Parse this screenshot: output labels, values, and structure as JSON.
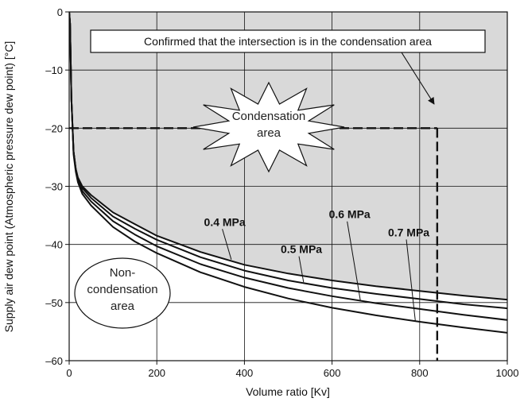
{
  "chart_data": {
    "type": "line",
    "xlabel": "Volume ratio [Kv]",
    "ylabel": "Supply air dew point (Atmospheric pressure dew point) [°C]",
    "xlim": [
      0,
      1000
    ],
    "ylim": [
      -60,
      0
    ],
    "x_ticks": [
      0,
      200,
      400,
      600,
      800,
      1000
    ],
    "y_ticks": [
      0,
      -10,
      -20,
      -30,
      -40,
      -50,
      -60
    ],
    "x_tick_labels": [
      "0",
      "200",
      "400",
      "600",
      "800",
      "1000"
    ],
    "y_tick_labels": [
      "0",
      "–10",
      "–20",
      "–30",
      "–40",
      "–50",
      "–60"
    ],
    "grid": true,
    "condensation_region_color": "#d9d9d9",
    "series": [
      {
        "name": "0.4 MPa",
        "x": [
          2,
          5,
          10,
          15,
          20,
          30,
          50,
          100,
          150,
          200,
          300,
          400,
          500,
          600,
          700,
          800,
          900,
          1000
        ],
        "y": [
          -2,
          -15,
          -24,
          -27,
          -28.5,
          -30,
          -31.5,
          -34.5,
          -36.5,
          -38.5,
          -41.3,
          -43.5,
          -45,
          -46.2,
          -47.2,
          -48,
          -48.8,
          -49.5
        ]
      },
      {
        "name": "0.5 MPa",
        "x": [
          2,
          5,
          10,
          15,
          20,
          30,
          50,
          100,
          150,
          200,
          300,
          400,
          500,
          600,
          700,
          800,
          900,
          1000
        ],
        "y": [
          -2,
          -15,
          -24,
          -27,
          -28.7,
          -30.3,
          -32,
          -35.2,
          -37.3,
          -39.2,
          -42.2,
          -44.5,
          -46.2,
          -47.5,
          -48.5,
          -49.4,
          -50.3,
          -51
        ]
      },
      {
        "name": "0.6 MPa",
        "x": [
          2,
          5,
          10,
          15,
          20,
          30,
          50,
          100,
          150,
          200,
          300,
          400,
          500,
          600,
          700,
          800,
          900,
          1000
        ],
        "y": [
          -2,
          -15,
          -24,
          -27.2,
          -29,
          -30.8,
          -32.6,
          -36,
          -38.3,
          -40.3,
          -43.4,
          -45.7,
          -47.5,
          -48.9,
          -50.1,
          -51.1,
          -52.1,
          -53
        ]
      },
      {
        "name": "0.7 MPa",
        "x": [
          2,
          5,
          10,
          15,
          20,
          30,
          50,
          100,
          150,
          200,
          300,
          400,
          500,
          600,
          700,
          800,
          900,
          1000
        ],
        "y": [
          -2,
          -15,
          -24.5,
          -27.5,
          -29.3,
          -31.3,
          -33.3,
          -37,
          -39.5,
          -41.5,
          -44.8,
          -47.3,
          -49.3,
          -50.9,
          -52.2,
          -53.3,
          -54.3,
          -55.2
        ]
      }
    ],
    "series_labels": [
      {
        "text": "0.4 MPa",
        "x": 355,
        "y": -36.8,
        "anchor_x": 370,
        "anchor_y": -42.6
      },
      {
        "text": "0.5 MPa",
        "x": 530,
        "y": -41.5,
        "anchor_x": 535,
        "anchor_y": -46.5
      },
      {
        "text": "0.6 MPa",
        "x": 640,
        "y": -35.5,
        "anchor_x": 665,
        "anchor_y": -49.8
      },
      {
        "text": "0.7 MPa",
        "x": 775,
        "y": -38.6,
        "anchor_x": 790,
        "anchor_y": -53.1
      }
    ],
    "reference_lines": {
      "x": 840,
      "y": -20
    },
    "annotations": {
      "callout": "Confirmed that the intersection is in the condensation area",
      "condensation_area": [
        "Condensation",
        "area"
      ],
      "non_condensation_area": [
        "Non-",
        "condensation",
        "area"
      ]
    }
  }
}
